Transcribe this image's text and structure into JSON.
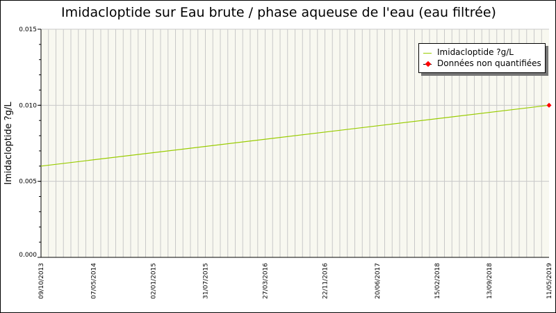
{
  "chart_data": {
    "type": "line",
    "title": "Imidacloptide sur Eau brute / phase aqueuse de l'eau (eau filtrée)",
    "ylabel": "Imidacloptide ?g/L",
    "xlabel": "",
    "ylim": [
      0,
      0.015
    ],
    "yticks": [
      "0.000",
      "0.005",
      "0.010",
      "0.015"
    ],
    "xticks": [
      "09/10/2013",
      "07/05/2014",
      "02/01/2015",
      "31/07/2015",
      "27/03/2016",
      "22/11/2016",
      "20/06/2017",
      "15/02/2018",
      "13/09/2018",
      "11/05/2019"
    ],
    "grid": true,
    "legend_placement": "top-right",
    "series": [
      {
        "name": "Imidacloptide ?g/L",
        "color": "#99cc00",
        "x": [
          "09/10/2013",
          "11/05/2019"
        ],
        "values": [
          0.006,
          0.01
        ]
      },
      {
        "name": "Données non quantifiées",
        "color": "#ff0000",
        "x": [
          "11/05/2019"
        ],
        "values": [
          0.01
        ]
      }
    ]
  }
}
